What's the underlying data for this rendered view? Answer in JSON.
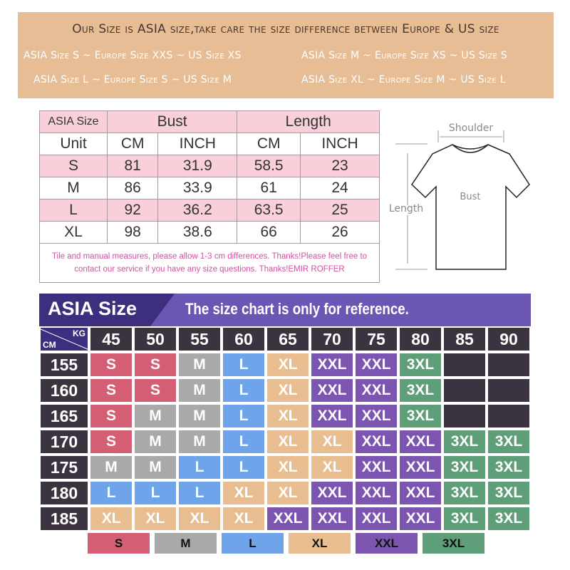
{
  "banner": {
    "title": "Our Size is ASIA size,take care the size difference between Europe & US size",
    "lines": [
      "ASIA Size S ~ Europe Size XXS ~ US Size XS",
      "ASIA Size M ~ Europe Size XS ~ US Size S",
      "ASIA Size L ~ Europe Size S ~ US Size M",
      "ASIA Size XL ~ Europe Size M ~ US Size L"
    ]
  },
  "measure_table": {
    "h_size": "ASIA Size",
    "h_bust": "Bust",
    "h_length": "Length",
    "unit": "Unit",
    "cm": "CM",
    "inch": "INCH",
    "rows": [
      [
        "S",
        "81",
        "31.9",
        "58.5",
        "23"
      ],
      [
        "M",
        "86",
        "33.9",
        "61",
        "24"
      ],
      [
        "L",
        "92",
        "36.2",
        "63.5",
        "25"
      ],
      [
        "XL",
        "98",
        "38.6",
        "66",
        "26"
      ]
    ],
    "note": "Tile and manual measures, please allow 1-3 cm differences. Thanks!Please feel free to contact our service if you have any size questions. Thanks!EMIR ROFFER"
  },
  "diagram": {
    "shoulder": "Shoulder",
    "bust": "Bust",
    "length": "Length"
  },
  "size_grid": {
    "title": "ASIA Size",
    "subtitle": "The size chart is only for reference.",
    "kg_label": "KG",
    "cm_label": "CM",
    "weights": [
      "45",
      "50",
      "55",
      "60",
      "65",
      "70",
      "75",
      "80",
      "85",
      "90"
    ],
    "rows": [
      {
        "height": "155",
        "sizes": [
          "S",
          "S",
          "M",
          "L",
          "XL",
          "XXL",
          "XXL",
          "3XL",
          "",
          ""
        ]
      },
      {
        "height": "160",
        "sizes": [
          "S",
          "S",
          "M",
          "L",
          "XL",
          "XXL",
          "XXL",
          "3XL",
          "",
          ""
        ]
      },
      {
        "height": "165",
        "sizes": [
          "S",
          "M",
          "M",
          "L",
          "XL",
          "XXL",
          "XXL",
          "3XL",
          "",
          ""
        ]
      },
      {
        "height": "170",
        "sizes": [
          "S",
          "M",
          "M",
          "L",
          "XL",
          "XL",
          "XXL",
          "XXL",
          "3XL",
          "3XL"
        ]
      },
      {
        "height": "175",
        "sizes": [
          "M",
          "M",
          "L",
          "L",
          "XL",
          "XL",
          "XXL",
          "XXL",
          "3XL",
          "3XL"
        ]
      },
      {
        "height": "180",
        "sizes": [
          "L",
          "L",
          "L",
          "XL",
          "XL",
          "XXL",
          "XXL",
          "XXL",
          "3XL",
          "3XL"
        ]
      },
      {
        "height": "185",
        "sizes": [
          "XL",
          "XL",
          "XL",
          "XL",
          "XXL",
          "XXL",
          "XXL",
          "XXL",
          "3XL",
          "3XL"
        ]
      }
    ]
  },
  "legend": [
    "S",
    "M",
    "L",
    "XL",
    "XXL",
    "3XL"
  ],
  "colors": {
    "S": "#d45f74",
    "M": "#a9a9a9",
    "L": "#6fa3ea",
    "XL": "#e8bd8f",
    "XXL": "#7b55b0",
    "3XL": "#5e9e78",
    "": "#3b3440"
  }
}
